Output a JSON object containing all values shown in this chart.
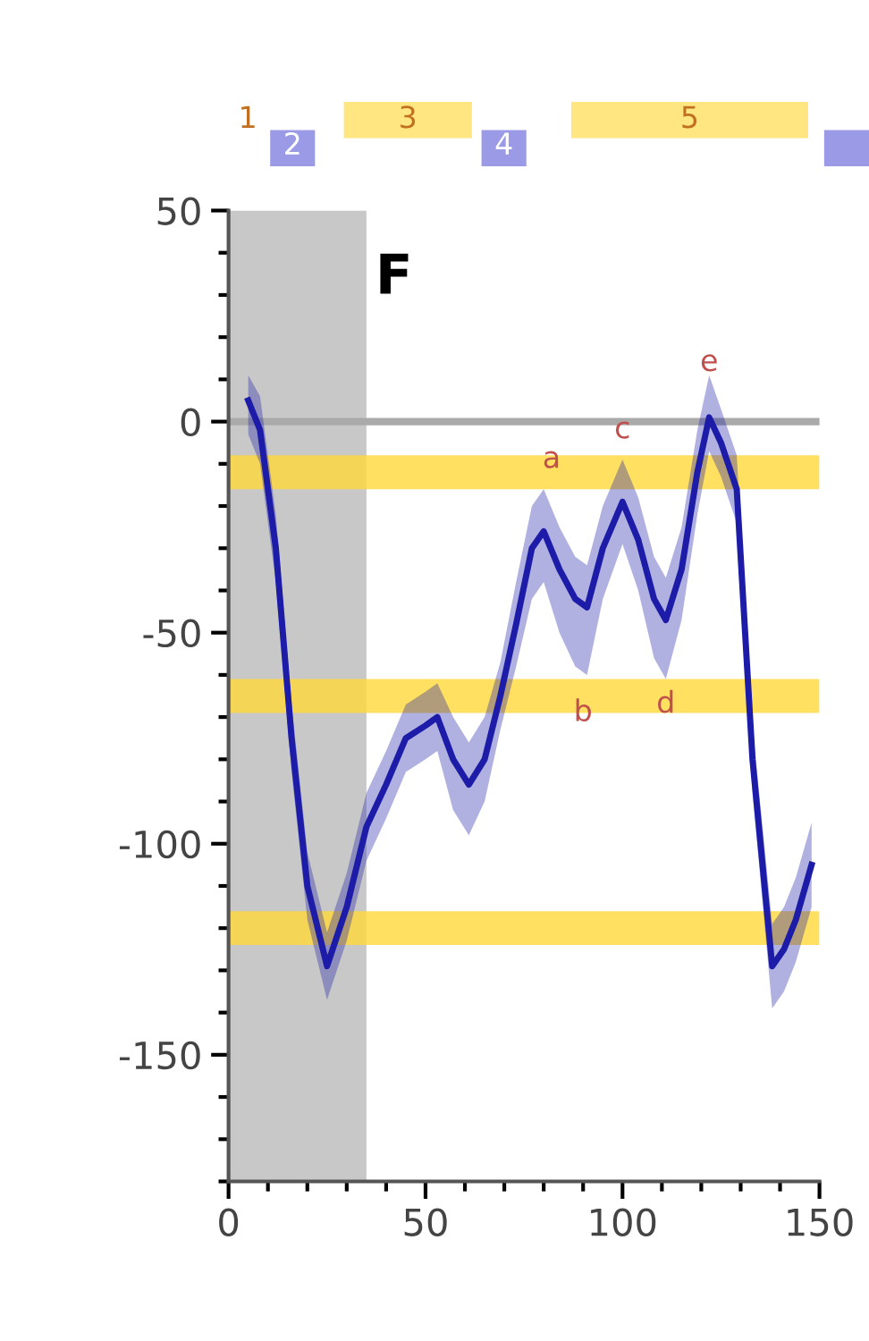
{
  "chart_data": {
    "type": "line",
    "x": [
      5,
      8,
      12,
      16,
      20,
      25,
      30,
      35,
      40,
      45,
      50,
      53,
      57,
      61,
      65,
      69,
      73,
      77,
      80,
      84,
      88,
      91,
      95,
      100,
      104,
      108,
      111,
      115,
      119,
      122,
      125,
      129,
      133,
      138,
      141,
      144,
      148
    ],
    "series": [
      {
        "color": "#1c1ca8",
        "values": [
          5,
          -2,
          -30,
          -75,
          -110,
          -129,
          -115,
          -96,
          -86,
          -75,
          -72,
          -70,
          -80,
          -86,
          -80,
          -65,
          -48,
          -30,
          -26,
          -35,
          -42,
          -44,
          -30,
          -19,
          -28,
          -42,
          -47,
          -35,
          -12,
          1,
          -5,
          -16,
          -80,
          -129,
          -125,
          -118,
          -105
        ],
        "lower": [
          -3,
          -10,
          -38,
          -83,
          -118,
          -137,
          -123,
          -104,
          -94,
          -83,
          -80,
          -78,
          -92,
          -98,
          -90,
          -73,
          -58,
          -42,
          -38,
          -50,
          -58,
          -60,
          -42,
          -29,
          -40,
          -56,
          -61,
          -47,
          -22,
          -7,
          -13,
          -24,
          -88,
          -139,
          -135,
          -128,
          -115
        ],
        "upper": [
          11,
          6,
          -22,
          -67,
          -102,
          -121,
          -107,
          -88,
          -78,
          -67,
          -64,
          -62,
          -70,
          -76,
          -70,
          -57,
          -38,
          -20,
          -16,
          -25,
          -32,
          -34,
          -20,
          -9,
          -18,
          -32,
          -37,
          -25,
          -2,
          11,
          3,
          -8,
          -72,
          -119,
          -115,
          -108,
          -95
        ]
      }
    ],
    "xlim": [
      0,
      150
    ],
    "ylim": [
      -180,
      50
    ],
    "xticks": [
      0,
      50,
      100,
      150
    ],
    "yticks": [
      50,
      0,
      -50,
      -100,
      -150
    ],
    "grid": false,
    "marker": "none",
    "line_style": "solid",
    "ref_lines": [
      {
        "axis": "y",
        "value": 0,
        "color": "#aaaaaa"
      }
    ],
    "bands": [
      {
        "axis": "x",
        "from": 0,
        "to": 35,
        "color": "#c8c8c8"
      },
      {
        "axis": "y",
        "from": -16,
        "to": -8,
        "color": "#ffd83a"
      },
      {
        "axis": "y",
        "from": -69,
        "to": -61,
        "color": "#ffd83a"
      },
      {
        "axis": "y",
        "from": -124,
        "to": -116,
        "color": "#ffd83a"
      }
    ],
    "annotations": [
      "1",
      "2",
      "3",
      "4",
      "5",
      "F",
      {
        "text": "a",
        "x": 82,
        "y": -9
      },
      {
        "text": "b",
        "x": 90,
        "y": -69
      },
      {
        "text": "c",
        "x": 100,
        "y": -2
      },
      {
        "text": "d",
        "x": 111,
        "y": -67
      },
      {
        "text": "e",
        "x": 122,
        "y": 1
      }
    ]
  }
}
